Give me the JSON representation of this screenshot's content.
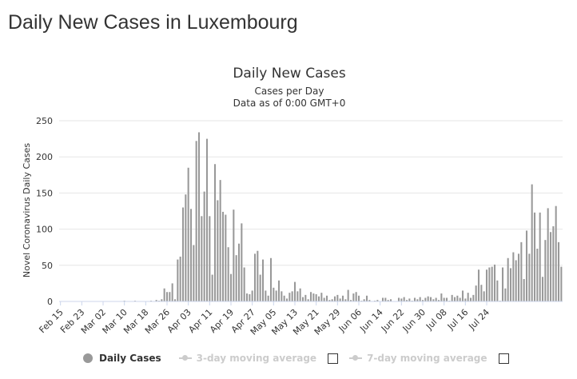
{
  "page": {
    "title": "Daily New Cases in Luxembourg"
  },
  "chart_data": {
    "type": "bar",
    "title": "Daily New Cases",
    "subtitle": "Cases per Day",
    "subtitle2": "Data as of 0:00 GMT+0",
    "ylabel": "Novel Coronavirus Daily Cases",
    "xlabel": "",
    "ylim": [
      0,
      250
    ],
    "yticks": [
      0,
      50,
      100,
      150,
      200,
      250
    ],
    "grid": true,
    "legend_position": "bottom",
    "bar_color": "#999999",
    "x_tick_labels": [
      "Feb 15",
      "Feb 23",
      "Mar 02",
      "Mar 10",
      "Mar 18",
      "Mar 26",
      "Apr 03",
      "Apr 11",
      "Apr 19",
      "Apr 27",
      "May 05",
      "May 13",
      "May 21",
      "May 29",
      "Jun 06",
      "Jun 14",
      "Jun 22",
      "Jun 30",
      "Jul 08",
      "Jul 16",
      "Jul 24"
    ],
    "x_start": "2020-02-15",
    "series": [
      {
        "name": "Daily Cases",
        "values": [
          0,
          0,
          0,
          0,
          0,
          0,
          0,
          0,
          0,
          0,
          0,
          0,
          0,
          0,
          0,
          0,
          0,
          0,
          0,
          0,
          0,
          0,
          0,
          0,
          1,
          0,
          0,
          0,
          1,
          0,
          0,
          0,
          0,
          0,
          1,
          0,
          2,
          1,
          3,
          18,
          13,
          13,
          25,
          3,
          58,
          62,
          130,
          148,
          185,
          128,
          78,
          222,
          234,
          118,
          152,
          225,
          118,
          37,
          190,
          140,
          168,
          124,
          120,
          75,
          38,
          127,
          64,
          80,
          108,
          47,
          11,
          10,
          15,
          66,
          70,
          37,
          58,
          15,
          8,
          60,
          19,
          15,
          29,
          14,
          8,
          4,
          12,
          14,
          27,
          14,
          18,
          6,
          9,
          3,
          13,
          11,
          10,
          7,
          12,
          5,
          8,
          2,
          3,
          7,
          9,
          4,
          8,
          3,
          16,
          2,
          11,
          13,
          8,
          1,
          3,
          8,
          2,
          0,
          1,
          2,
          0,
          5,
          5,
          2,
          3,
          0,
          0,
          5,
          4,
          6,
          2,
          4,
          1,
          5,
          3,
          6,
          2,
          5,
          7,
          6,
          3,
          5,
          2,
          11,
          5,
          5,
          1,
          9,
          6,
          8,
          5,
          15,
          4,
          12,
          5,
          9,
          22,
          44,
          23,
          14,
          44,
          47,
          48,
          51,
          29,
          1,
          47,
          18,
          60,
          46,
          68,
          57,
          66,
          82,
          31,
          98,
          66,
          162,
          123,
          73,
          123,
          34,
          85,
          129,
          96,
          104,
          132,
          82,
          48
        ]
      },
      {
        "name": "3-day moving average",
        "visible": false
      },
      {
        "name": "7-day moving average",
        "visible": false
      }
    ]
  }
}
